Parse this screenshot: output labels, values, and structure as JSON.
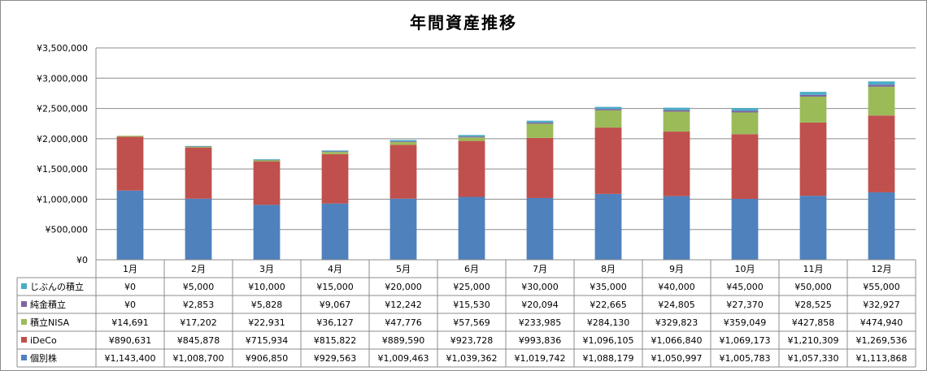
{
  "chart_data": {
    "type": "bar",
    "stacked": true,
    "title": "年間資産推移",
    "categories": [
      "1月",
      "2月",
      "3月",
      "4月",
      "5月",
      "6月",
      "7月",
      "8月",
      "9月",
      "10月",
      "11月",
      "12月"
    ],
    "ylim": [
      0,
      3500000
    ],
    "yticks": [
      0,
      500000,
      1000000,
      1500000,
      2000000,
      2500000,
      3000000,
      3500000
    ],
    "ytick_labels": [
      "¥0",
      "¥500,000",
      "¥1,000,000",
      "¥1,500,000",
      "¥2,000,000",
      "¥2,500,000",
      "¥3,000,000",
      "¥3,500,000"
    ],
    "grid": true,
    "legend_placement": "data-table-left",
    "series": [
      {
        "name": "個別株",
        "color": "#4f81bd",
        "values": [
          1143400,
          1008700,
          906850,
          929563,
          1009463,
          1039362,
          1019742,
          1088179,
          1050997,
          1005783,
          1057330,
          1113868
        ],
        "labels": [
          "¥1,143,400",
          "¥1,008,700",
          "¥906,850",
          "¥929,563",
          "¥1,009,463",
          "¥1,039,362",
          "¥1,019,742",
          "¥1,088,179",
          "¥1,050,997",
          "¥1,005,783",
          "¥1,057,330",
          "¥1,113,868"
        ]
      },
      {
        "name": "iDeCo",
        "color": "#c0504d",
        "values": [
          890631,
          845878,
          715934,
          815822,
          889590,
          923728,
          993836,
          1096105,
          1066840,
          1069173,
          1210309,
          1269536
        ],
        "labels": [
          "¥890,631",
          "¥845,878",
          "¥715,934",
          "¥815,822",
          "¥889,590",
          "¥923,728",
          "¥993,836",
          "¥1,096,105",
          "¥1,066,840",
          "¥1,069,173",
          "¥1,210,309",
          "¥1,269,536"
        ]
      },
      {
        "name": "積立NISA",
        "color": "#9bbb59",
        "values": [
          14691,
          17202,
          22931,
          36127,
          47776,
          57569,
          233985,
          284130,
          329823,
          359049,
          427858,
          474940
        ],
        "labels": [
          "¥14,691",
          "¥17,202",
          "¥22,931",
          "¥36,127",
          "¥47,776",
          "¥57,569",
          "¥233,985",
          "¥284,130",
          "¥329,823",
          "¥359,049",
          "¥427,858",
          "¥474,940"
        ]
      },
      {
        "name": "純金積立",
        "color": "#8064a2",
        "values": [
          0,
          2853,
          5828,
          9067,
          12242,
          15530,
          20094,
          22665,
          24805,
          27370,
          28525,
          32927
        ],
        "labels": [
          "¥0",
          "¥2,853",
          "¥5,828",
          "¥9,067",
          "¥12,242",
          "¥15,530",
          "¥20,094",
          "¥22,665",
          "¥24,805",
          "¥27,370",
          "¥28,525",
          "¥32,927"
        ]
      },
      {
        "name": "じぶんの積立",
        "color": "#4bacc6",
        "values": [
          0,
          5000,
          10000,
          15000,
          20000,
          25000,
          30000,
          35000,
          40000,
          45000,
          50000,
          55000
        ],
        "labels": [
          "¥0",
          "¥5,000",
          "¥10,000",
          "¥15,000",
          "¥20,000",
          "¥25,000",
          "¥30,000",
          "¥35,000",
          "¥40,000",
          "¥45,000",
          "¥50,000",
          "¥55,000"
        ]
      }
    ]
  }
}
